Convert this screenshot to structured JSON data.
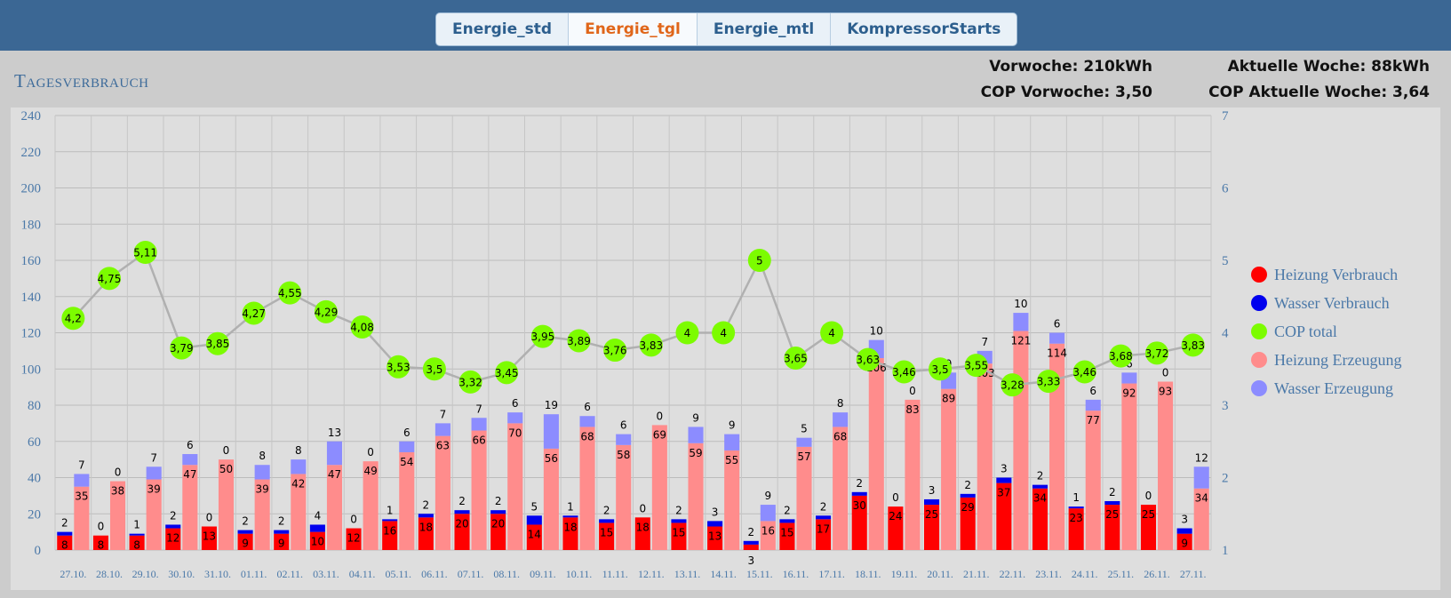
{
  "tabs": [
    {
      "label": "Energie_std",
      "active": false
    },
    {
      "label": "Energie_tgl",
      "active": true
    },
    {
      "label": "Energie_mtl",
      "active": false
    },
    {
      "label": "KompressorStarts",
      "active": false
    }
  ],
  "page_title": "Tagesverbrauch",
  "stats": {
    "vorwoche": "Vorwoche: 210kWh",
    "aktuelle_woche": "Aktuelle Woche: 88kWh",
    "cop_vorwoche": "COP Vorwoche: 3,50",
    "cop_aktuelle_woche": "COP Aktuelle Woche: 3,64"
  },
  "colors": {
    "heizung_verbrauch": "#ff0000",
    "wasser_verbrauch": "#0000ee",
    "cop_total": "#7cfc00",
    "heizung_erzeugung": "#ff8c8c",
    "wasser_erzeugung": "#8c8cff",
    "cop_line": "#b0b0b0",
    "axis_text": "#4a78a8"
  },
  "chart_data": {
    "type": "bar",
    "categories": [
      "27.10.",
      "28.10.",
      "29.10.",
      "30.10.",
      "31.10.",
      "01.11.",
      "02.11.",
      "03.11.",
      "04.11.",
      "05.11.",
      "06.11.",
      "07.11.",
      "08.11.",
      "09.11.",
      "10.11.",
      "11.11.",
      "12.11.",
      "13.11.",
      "14.11.",
      "15.11.",
      "16.11.",
      "17.11.",
      "18.11.",
      "19.11.",
      "20.11.",
      "21.11.",
      "22.11.",
      "23.11.",
      "24.11.",
      "25.11.",
      "26.11.",
      "27.11."
    ],
    "y_left": {
      "min": 0,
      "max": 240,
      "ticks": [
        "0",
        "20",
        "40",
        "60",
        "80",
        "100",
        "120",
        "140",
        "160",
        "180",
        "200",
        "220",
        "240"
      ]
    },
    "y_right": {
      "min": 1,
      "max": 7,
      "ticks": [
        "1",
        "2",
        "3",
        "4",
        "5",
        "6",
        "7"
      ]
    },
    "grid": true,
    "legend_position": "right",
    "series": [
      {
        "name": "Heizung Verbrauch",
        "stack": "verbrauch",
        "axis": "left",
        "values": [
          8,
          8,
          8,
          12,
          13,
          9,
          9,
          10,
          12,
          16,
          18,
          20,
          20,
          14,
          18,
          15,
          18,
          15,
          13,
          3,
          15,
          17,
          30,
          24,
          25,
          29,
          37,
          34,
          23,
          25,
          25,
          9
        ]
      },
      {
        "name": "Wasser Verbrauch",
        "stack": "verbrauch",
        "axis": "left",
        "values": [
          2,
          0,
          1,
          2,
          0,
          2,
          2,
          4,
          0,
          1,
          2,
          2,
          2,
          5,
          1,
          2,
          0,
          2,
          3,
          2,
          2,
          2,
          2,
          0,
          3,
          2,
          3,
          2,
          1,
          2,
          0,
          3
        ]
      },
      {
        "name": "COP  total",
        "type": "line",
        "axis": "right",
        "values": [
          4.2,
          4.75,
          5.11,
          3.79,
          3.85,
          4.27,
          4.55,
          4.29,
          4.08,
          3.53,
          3.5,
          3.32,
          3.45,
          3.95,
          3.89,
          3.76,
          3.83,
          4,
          4,
          5,
          3.65,
          4,
          3.63,
          3.46,
          3.5,
          3.55,
          3.28,
          3.33,
          3.46,
          3.68,
          3.72,
          3.83
        ],
        "labels": [
          "4,2",
          "4,75",
          "5,11",
          "3,79",
          "3,85",
          "4,27",
          "4,55",
          "4,29",
          "4,08",
          "3,53",
          "3,5",
          "3,32",
          "3,45",
          "3,95",
          "3,89",
          "3,76",
          "3,83",
          "4",
          "4",
          "5",
          "3,65",
          "4",
          "3,63",
          "3,46",
          "3,5",
          "3,55",
          "3,28",
          "3,33",
          "3,46",
          "3,68",
          "3,72",
          "3,83"
        ]
      },
      {
        "name": "Heizung Erzeugung",
        "stack": "erzeugung",
        "axis": "left",
        "values": [
          35,
          38,
          39,
          47,
          50,
          39,
          42,
          47,
          49,
          54,
          63,
          66,
          70,
          56,
          68,
          58,
          69,
          59,
          55,
          16,
          57,
          68,
          106,
          83,
          89,
          103,
          121,
          114,
          77,
          92,
          93,
          34
        ]
      },
      {
        "name": "Wasser Erzeugung",
        "stack": "erzeugung",
        "axis": "left",
        "values": [
          7,
          0,
          7,
          6,
          0,
          8,
          8,
          13,
          0,
          6,
          7,
          7,
          6,
          19,
          6,
          6,
          0,
          9,
          9,
          9,
          5,
          8,
          10,
          0,
          9,
          7,
          10,
          6,
          6,
          6,
          0,
          12
        ]
      }
    ]
  }
}
